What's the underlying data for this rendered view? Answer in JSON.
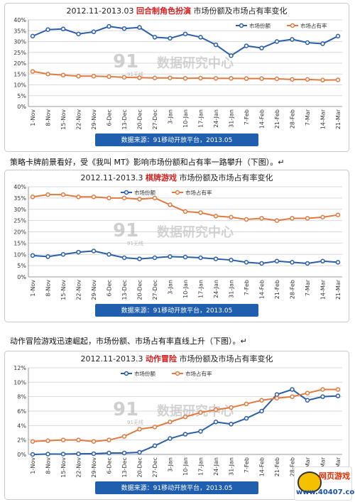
{
  "captions": [
    "策略卡牌前景看好，受《我叫 MT》影响市场份额和占有率一路攀升（下图）。↵",
    "动作冒险游戏迅速崛起，市场份额、市场占有率直线上升（下图）。↵"
  ],
  "common": {
    "watermark_logo": "91",
    "watermark_sub": "91无线",
    "watermark_text": "数据研究中心",
    "colors": {
      "share": "#2a5ea8",
      "rate": "#e07a40",
      "accent": "#d42020",
      "footer_bg": "#1f5fae"
    }
  },
  "corner_logo": {
    "line1": "网页游戏",
    "line2": "www.40407.com",
    "icon": "smiley-face-icon"
  },
  "chart_data": [
    {
      "type": "line",
      "title_prefix": "2012.11-2013.03 ",
      "title_highlight": "回合制角色扮演",
      "title_suffix": " 市场份额及市场占有率变化",
      "categories": [
        "1-Nov",
        "8-Nov",
        "15-Nov",
        "22-Nov",
        "29-Nov",
        "6-Dec",
        "13-Dec",
        "20-Dec",
        "27-Dec",
        "3-Jan",
        "10-Jan",
        "17-Jan",
        "24-Jan",
        "31-Jan",
        "7-Feb",
        "14-Feb",
        "21-Feb",
        "28-Feb",
        "7-Mar",
        "14-Mar",
        "21-Mar"
      ],
      "yticks": [
        "0%",
        "5%",
        "10%",
        "15%",
        "20%",
        "25%",
        "30%",
        "35%",
        "40%"
      ],
      "ylim": [
        0,
        40
      ],
      "legend": [
        "市场份额",
        "市场占有率"
      ],
      "legend_position": "top-right",
      "series": [
        {
          "name": "市场份额",
          "values": [
            32.5,
            35.5,
            35.8,
            33.5,
            34.5,
            37,
            36,
            36.5,
            32,
            31.5,
            33.5,
            32,
            28.5,
            23.5,
            28,
            27,
            30,
            31,
            29.5,
            29,
            32.5
          ]
        },
        {
          "name": "市场占有率",
          "values": [
            16.2,
            15,
            14.5,
            14,
            14,
            13.8,
            13.5,
            13.3,
            13.2,
            13.2,
            13,
            13.1,
            13,
            13,
            12.9,
            12.9,
            12.8,
            12.5,
            12.5,
            12.2,
            12.3
          ]
        }
      ],
      "footer": "数据来源：91移动开放平台，2013.05"
    },
    {
      "type": "line",
      "title_prefix": "2012.11-2013.3 ",
      "title_highlight": "棋牌游戏",
      "title_suffix": " 市场份额及市场占有率变化",
      "categories": [
        "1-Nov",
        "8-Nov",
        "15-Nov",
        "22-Nov",
        "29-Nov",
        "6-Dec",
        "13-Dec",
        "20-Dec",
        "27-Dec",
        "3-Jan",
        "10-Jan",
        "17-Jan",
        "24-Jan",
        "31-Jan",
        "7-Feb",
        "14-Feb",
        "21-Feb",
        "28-Feb",
        "7-Mar",
        "14-Mar",
        "21-Mar"
      ],
      "yticks": [
        "0%",
        "5%",
        "10%",
        "15%",
        "20%",
        "25%",
        "30%",
        "35%",
        "40%"
      ],
      "ylim": [
        0,
        40
      ],
      "legend": [
        "市场份额",
        "市场占有率"
      ],
      "legend_position": "top-left",
      "series": [
        {
          "name": "市场份额",
          "values": [
            9.5,
            9,
            10,
            11,
            11.5,
            10,
            8.5,
            8,
            8.5,
            9,
            8.8,
            8.5,
            8,
            7.5,
            6.5,
            6,
            7,
            6.5,
            6,
            7,
            6.5
          ]
        },
        {
          "name": "市场占有率",
          "values": [
            35.5,
            36.5,
            36.5,
            35.5,
            35.5,
            35,
            35,
            34.5,
            35,
            32,
            29,
            28.5,
            27,
            26.5,
            25.5,
            26,
            25,
            26,
            26,
            26.5,
            27.5
          ]
        }
      ],
      "footer": "数据来源：91移动开放平台，2013.05"
    },
    {
      "type": "line",
      "title_prefix": "2012.11-2013.3 ",
      "title_highlight": "动作冒险",
      "title_suffix": " 市场份额及市场占有率变化",
      "categories": [
        "1-Nov",
        "8-Nov",
        "15-Nov",
        "22-Nov",
        "29-Nov",
        "6-Dec",
        "13-Dec",
        "20-Dec",
        "27-Dec",
        "3-Jan",
        "10-Jan",
        "17-Jan",
        "24-Jan",
        "31-Jan",
        "7-Feb",
        "14-Feb",
        "21-Feb",
        "28-Feb",
        "7-Mar",
        "14-Mar",
        "21-Mar"
      ],
      "yticks": [
        "0%",
        "2%",
        "4%",
        "6%",
        "8%",
        "10%",
        "12%"
      ],
      "ylim": [
        0,
        12
      ],
      "legend": [
        "市场份额",
        "市场占有率"
      ],
      "legend_position": "top-left",
      "series": [
        {
          "name": "市场份额",
          "values": [
            0,
            0.05,
            0.05,
            0.08,
            0.1,
            0.2,
            0.2,
            0.3,
            1.2,
            2.2,
            2.8,
            3.2,
            4.5,
            4.2,
            5,
            6,
            8.3,
            9,
            7.5,
            8,
            8.1
          ]
        },
        {
          "name": "市场占有率",
          "values": [
            1.8,
            1.9,
            2,
            2,
            1.8,
            2,
            2.5,
            3.5,
            3.8,
            4.5,
            5.2,
            5.8,
            6.2,
            6.5,
            7,
            7.5,
            7.8,
            8,
            8.5,
            9,
            9
          ]
        }
      ],
      "footer": "数据来源：91移动开放平台，2013.05"
    }
  ]
}
